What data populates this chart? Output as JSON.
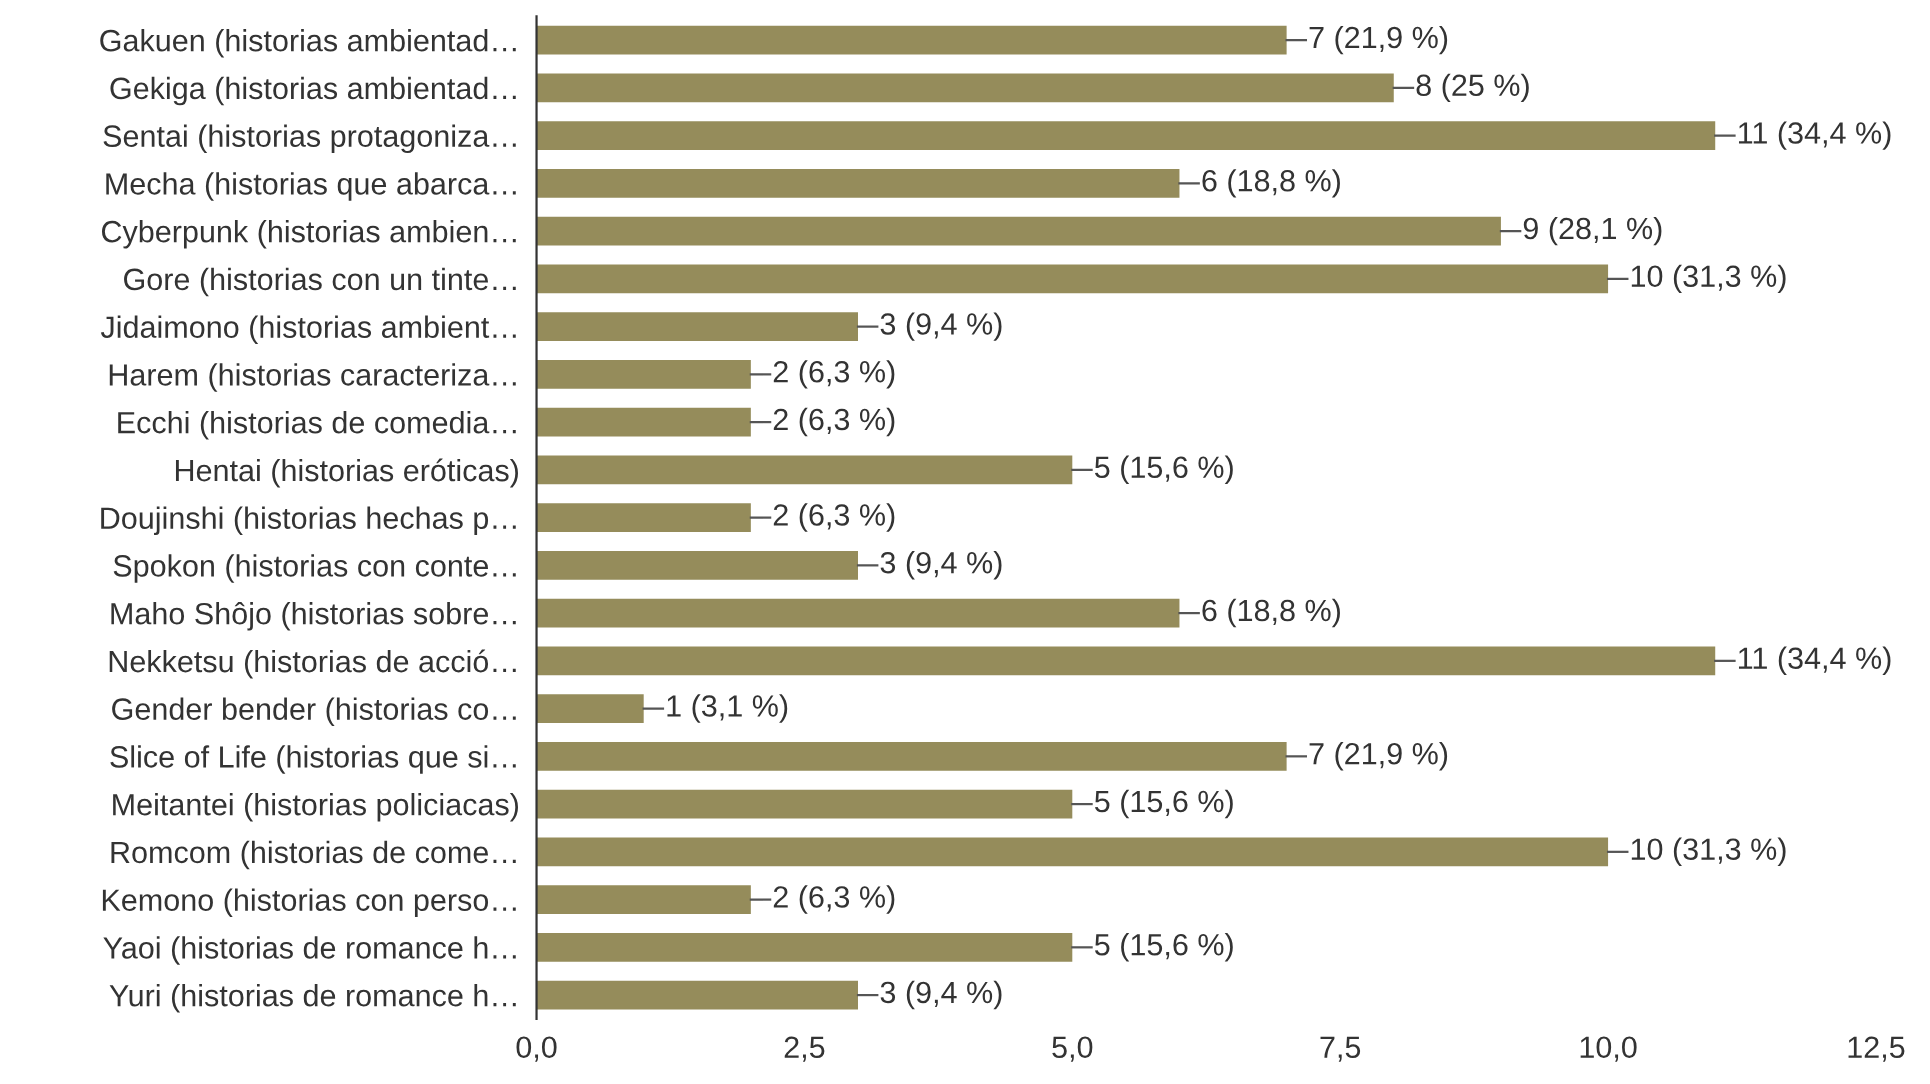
{
  "chart_data": {
    "type": "bar",
    "orientation": "horizontal",
    "categories": [
      "Gakuen (historias ambientad…",
      "Gekiga (historias ambientad…",
      "Sentai (historias protagoniza…",
      "Mecha (historias que abarca…",
      "Cyberpunk (historias ambien…",
      "Gore (historias con un tinte…",
      "Jidaimono (historias ambient…",
      "Harem (historias caracteriza…",
      "Ecchi (historias de comedia…",
      "Hentai (historias eróticas)",
      "Doujinshi (historias hechas p…",
      "Spokon (historias con conte…",
      "Maho Shôjo (historias sobre…",
      "Nekketsu (historias de acció…",
      "Gender bender (historias co…",
      "Slice of Life (historias que si…",
      "Meitantei (historias policiacas)",
      "Romcom (historias de come…",
      "Kemono (historias con perso…",
      "Yaoi (historias de romance h…",
      "Yuri (historias de romance h…"
    ],
    "values": [
      7,
      8,
      11,
      6,
      9,
      10,
      3,
      2,
      2,
      5,
      2,
      3,
      6,
      11,
      1,
      7,
      5,
      10,
      2,
      5,
      3
    ],
    "value_labels": [
      "7 (21,9 %)",
      "8 (25 %)",
      "11 (34,4 %)",
      "6 (18,8 %)",
      "9 (28,1 %)",
      "10 (31,3 %)",
      "3 (9,4 %)",
      "2 (6,3 %)",
      "2 (6,3 %)",
      "5 (15,6 %)",
      "2 (6,3 %)",
      "3 (9,4 %)",
      "6 (18,8 %)",
      "11 (34,4 %)",
      "1 (3,1 %)",
      "7 (21,9 %)",
      "5 (15,6 %)",
      "10 (31,3 %)",
      "2 (6,3 %)",
      "5 (15,6 %)",
      "3 (9,4 %)"
    ],
    "color": "#958c5b",
    "xlim": [
      0,
      12.5
    ],
    "xticks": [
      {
        "value": 0,
        "label": "0,0"
      },
      {
        "value": 2.5,
        "label": "2,5"
      },
      {
        "value": 5,
        "label": "5,0"
      },
      {
        "value": 7.5,
        "label": "7,5"
      },
      {
        "value": 10,
        "label": "10,0"
      },
      {
        "value": 12.5,
        "label": "12,5"
      }
    ],
    "grid": false
  }
}
